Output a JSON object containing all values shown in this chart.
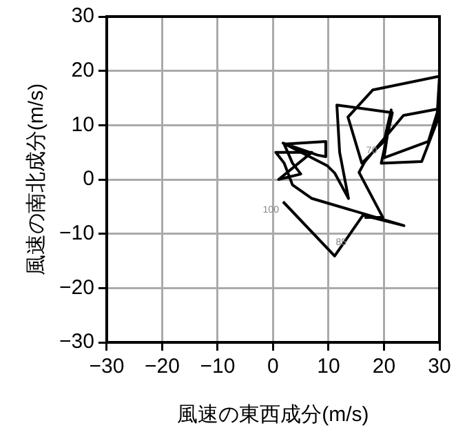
{
  "chart_data": {
    "type": "line",
    "xlabel": "風速の東西成分(m/s)",
    "ylabel": "風速の南北成分(m/s)",
    "x": [
      1.8,
      11.1,
      16.2,
      23.6,
      7,
      3.5,
      2,
      0.5,
      7,
      1,
      5,
      3.5,
      2,
      9.5,
      9.5,
      8,
      1.8,
      9.8,
      11.1,
      13.6,
      12,
      11.5,
      21.5,
      19.5,
      26.8,
      29.5,
      30,
      18,
      13.5,
      16,
      20,
      21.3,
      20,
      28,
      29.8,
      23.5,
      16.5,
      15.5,
      19.8,
      16.5
    ],
    "series": [
      {
        "color": "#000000",
        "values": [
          -4.1,
          -14.1,
          -6.6,
          -8.5,
          -3.5,
          -1,
          3,
          5,
          5,
          0,
          1,
          3,
          6.5,
          7,
          4.2,
          4.5,
          6.7,
          2.5,
          1.2,
          -3.5,
          5,
          13.7,
          12.3,
          3,
          3.3,
          10.5,
          19,
          16.5,
          11.5,
          3,
          7,
          12.8,
          4,
          7,
          13,
          11.8,
          3.2,
          1.3,
          -7,
          -7
        ]
      }
    ],
    "annotations": [
      {
        "text": "100",
        "x": 1.8,
        "y": -4.1
      },
      {
        "text": "85",
        "x": 14,
        "y": -10
      },
      {
        "text": "70",
        "x": 19.5,
        "y": 6.9
      }
    ],
    "xlim": [
      -30,
      30
    ],
    "ylim": [
      -30,
      30
    ],
    "xticks": [
      -30,
      -20,
      -10,
      0,
      10,
      20,
      30
    ],
    "yticks": [
      -30,
      -20,
      -10,
      0,
      10,
      20,
      30
    ],
    "grid": true,
    "legend": false,
    "marker": "none",
    "line_style": "solid"
  }
}
